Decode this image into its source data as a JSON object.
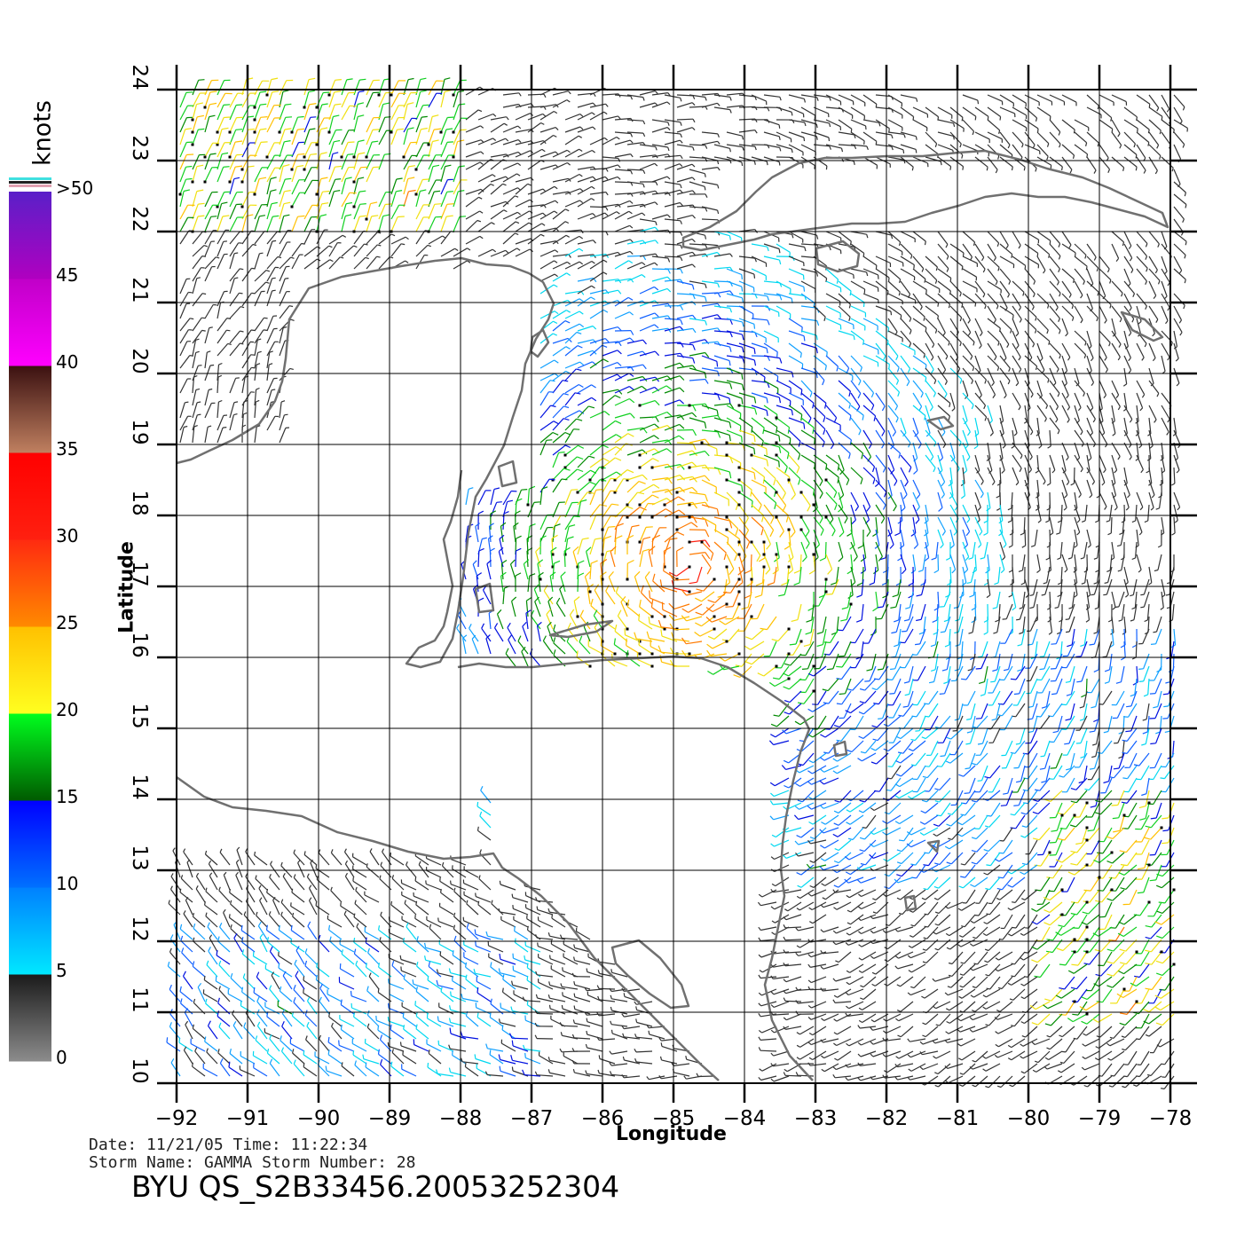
{
  "colorbar": {
    "unit": "knots",
    "segments": [
      {
        "from": 0,
        "to": 5,
        "colors": [
          "#8c8c8c",
          "#1a1a1a"
        ]
      },
      {
        "from": 5,
        "to": 10,
        "colors": [
          "#00e8ff",
          "#0080ff"
        ]
      },
      {
        "from": 10,
        "to": 15,
        "colors": [
          "#0070ff",
          "#0000ff"
        ]
      },
      {
        "from": 15,
        "to": 20,
        "colors": [
          "#005a00",
          "#00ff1e"
        ]
      },
      {
        "from": 20,
        "to": 25,
        "colors": [
          "#ffff20",
          "#ffc000"
        ]
      },
      {
        "from": 25,
        "to": 30,
        "colors": [
          "#ff8a00",
          "#ff2a10"
        ]
      },
      {
        "from": 30,
        "to": 35,
        "colors": [
          "#ff2010",
          "#ff0000"
        ]
      },
      {
        "from": 35,
        "to": 40,
        "colors": [
          "#c08060",
          "#3a1010"
        ]
      },
      {
        "from": 40,
        "to": 45,
        "colors": [
          "#ff00ff",
          "#c000c8"
        ]
      },
      {
        "from": 45,
        "to": 50,
        "colors": [
          "#b000c0",
          "#5a20c8"
        ]
      }
    ],
    "labels": [
      "0",
      "5",
      "10",
      "15",
      "20",
      "25",
      "30",
      "35",
      "40",
      "45",
      ">50"
    ]
  },
  "map": {
    "lon_range": [
      -92,
      -78
    ],
    "lat_range": [
      10,
      24
    ],
    "lon_ticks": [
      "-92",
      "-91",
      "-90",
      "-89",
      "-88",
      "-87",
      "-86",
      "-85",
      "-84",
      "-83",
      "-82",
      "-81",
      "-80",
      "-79",
      "-78"
    ],
    "lat_ticks": [
      "10",
      "11",
      "12",
      "13",
      "14",
      "15",
      "16",
      "17",
      "18",
      "19",
      "20",
      "21",
      "22",
      "23",
      "24"
    ],
    "grid": true,
    "xlabel": "Longitude",
    "ylabel": "Latitude",
    "coast_color": "#707070",
    "wind_field": "wind barbs colored by speed (knots)"
  },
  "meta": {
    "date_line": "Date: 11/21/05   Time: 11:22:34",
    "storm_line": "Storm Name: GAMMA   Storm Number: 28",
    "file_id": "BYU QS_S2B33456.20053252304"
  }
}
